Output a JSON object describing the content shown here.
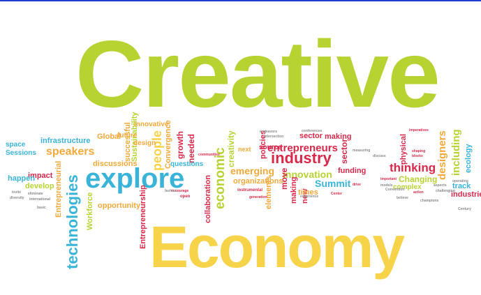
{
  "colors": {
    "green": "#b7d332",
    "yellow": "#f7d34a",
    "blue": "#39b4d8",
    "red": "#d8284a",
    "orange": "#f2a93a",
    "grey": "#8a8a8a",
    "topbar": "#1a3ccf"
  },
  "cloud": {
    "main_word": "Creative",
    "secondary_word": "Economy",
    "words": [
      "explore",
      "technologies",
      "economic",
      "industry",
      "entrepreneurs",
      "thinking",
      "innovation",
      "Summit",
      "emerging",
      "speakers",
      "people",
      "creativity",
      "Entrepreneurial",
      "collaboration",
      "Entrepreneurship",
      "designers",
      "including",
      "physical",
      "ecology",
      "Global",
      "future",
      "successful",
      "Sustainability",
      "discussions",
      "Convergence",
      "growth",
      "needed",
      "questions",
      "opportunity",
      "Workforce",
      "impact",
      "happen",
      "develop",
      "space",
      "Sessions",
      "infrastructure",
      "design",
      "innovative",
      "organizations",
      "sector",
      "move",
      "making",
      "new",
      "elements",
      "times",
      "funding",
      "Changing",
      "complex",
      "track",
      "industries",
      "source",
      "policies",
      "next",
      "open",
      "instrumental",
      "Center",
      "drive",
      "measuring",
      "models",
      "shaping",
      "blocks",
      "imperatives",
      "encourage",
      "invite",
      "diversity",
      "basic",
      "eliminate",
      "international",
      "communities",
      "fashion",
      "action",
      "challenging",
      "believe",
      "champions",
      "Convention",
      "discuss",
      "endeavors",
      "intersection",
      "conferences",
      "operating",
      "Century",
      "experience",
      "generation",
      "aspects",
      "important",
      "bringing"
    ]
  }
}
